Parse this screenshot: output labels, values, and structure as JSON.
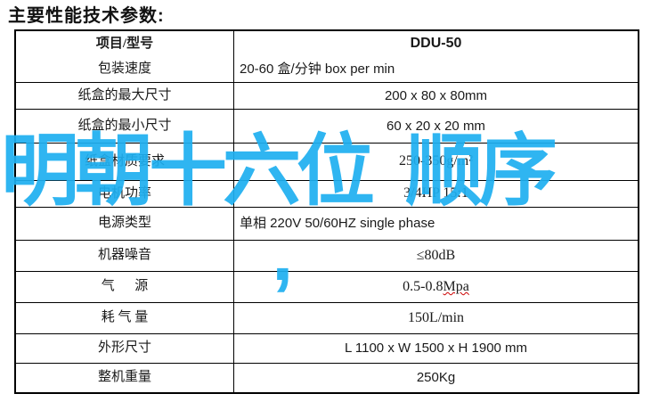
{
  "title": "主要性能技术参数:",
  "watermark": {
    "line1": "明朝十六位  顺序",
    "line2": ",",
    "color": "#1EAFF0"
  },
  "misspelling_underline_color": "#cc0000",
  "table": {
    "header": {
      "item_label": "项目/型号",
      "model": "DDU-50"
    },
    "rows": [
      {
        "label": "包装速度",
        "value": "20-60 盒/分钟 box per min"
      },
      {
        "label": "纸盒的最大尺寸",
        "value": "200 x 80 x 80mm"
      },
      {
        "label": "纸盒的最小尺寸",
        "value": "60 x 20 x 20 mm"
      },
      {
        "label": "纸盒材质要求",
        "value": "250-350g/m²"
      },
      {
        "label": "电机功率",
        "value": "3/4HP 15:1"
      },
      {
        "label": "电源类型",
        "value": "单相 220V 50/60HZ  single phase"
      },
      {
        "label": "机器噪音",
        "value": "≤80dB"
      },
      {
        "label": "气      源",
        "value": "0.5-0.8 ",
        "value_misspelled": "Mpa"
      },
      {
        "label": "耗 气 量",
        "value": "150L/min"
      },
      {
        "label": "外形尺寸",
        "value": "L 1100 x   W 1500 x   H 1900 mm"
      },
      {
        "label": "整机重量",
        "value": "250Kg"
      }
    ]
  }
}
